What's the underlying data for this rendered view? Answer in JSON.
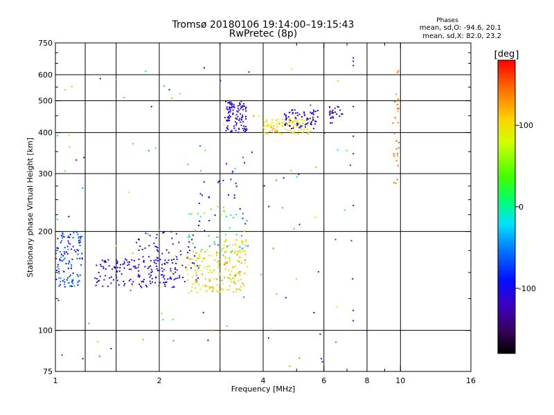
{
  "chart_data": {
    "type": "scatter",
    "title": "Tromsø 20180106 19:14:00–19:15:43",
    "subtitle": "RwPretec (8p)",
    "stats_header": "Phases",
    "stats_lines": [
      "mean, sd,O: -94.6, 20.1",
      "mean, sd,X: 82.0, 23.2"
    ],
    "xlabel": "Frequency [MHz]",
    "ylabel": "Stationary phase Virtual Height [km]",
    "x_scale": "log",
    "y_scale": "log",
    "xlim": [
      1,
      16
    ],
    "ylim": [
      75,
      750
    ],
    "x_ticks": [
      1,
      2,
      4,
      6,
      8,
      10,
      16
    ],
    "x_tick_labels": [
      "1",
      "2",
      "4",
      "6",
      "8",
      "10",
      "16"
    ],
    "x_minor_ticks": [
      3,
      5,
      7,
      9
    ],
    "y_ticks": [
      75,
      100,
      200,
      300,
      400,
      500,
      600,
      750
    ],
    "y_tick_labels": [
      "75",
      "100",
      "200",
      "300",
      "400",
      "500",
      "600",
      "750"
    ],
    "y_minor_ticks": [
      125,
      150,
      175,
      225,
      250,
      275,
      350,
      450,
      550,
      650,
      700
    ],
    "grid": true,
    "grid_x": [
      1.22,
      1.5,
      2,
      3,
      4,
      6,
      8,
      10
    ],
    "grid_y": [
      100,
      200,
      300,
      400,
      500,
      600
    ],
    "colorbar": {
      "label": "deg",
      "range": [
        -180,
        180
      ],
      "ticks": [
        100,
        0,
        -100
      ],
      "tick_labels": [
        "100",
        "0",
        "-100"
      ]
    },
    "seed_note": "",
    "clusters": [
      {
        "name": "",
        "xr": [
          1.0,
          1.2
        ],
        "yr": [
          135,
          200
        ],
        "pr": [
          -110,
          -40
        ],
        "n": 120
      },
      {
        "name": "",
        "xr": [
          1.3,
          2.3
        ],
        "yr": [
          135,
          165
        ],
        "pr": [
          -130,
          -90
        ],
        "n": 150
      },
      {
        "name": "",
        "xr": [
          1.7,
          2.6
        ],
        "yr": [
          140,
          200
        ],
        "pr": [
          -130,
          -95
        ],
        "n": 70
      },
      {
        "name": "",
        "xr": [
          2.4,
          3.6
        ],
        "yr": [
          130,
          175
        ],
        "pr": [
          60,
          140
        ],
        "n": 170
      },
      {
        "name": "",
        "xr": [
          2.4,
          3.6
        ],
        "yr": [
          160,
          240
        ],
        "pr": [
          -60,
          80
        ],
        "n": 45
      },
      {
        "name": "",
        "xr": [
          3.0,
          3.6
        ],
        "yr": [
          170,
          190
        ],
        "pr": [
          60,
          110
        ],
        "n": 30
      },
      {
        "name": "",
        "xr": [
          2.6,
          3.6
        ],
        "yr": [
          200,
          330
        ],
        "pr": [
          -110,
          -80
        ],
        "n": 25
      },
      {
        "name": "",
        "xr": [
          3.1,
          3.6
        ],
        "yr": [
          400,
          500
        ],
        "pr": [
          -125,
          -100
        ],
        "n": 110
      },
      {
        "name": "",
        "xr": [
          4.0,
          5.5
        ],
        "yr": [
          395,
          440
        ],
        "pr": [
          80,
          120
        ],
        "n": 110
      },
      {
        "name": "",
        "xr": [
          4.6,
          5.8
        ],
        "yr": [
          410,
          470
        ],
        "pr": [
          -125,
          -95
        ],
        "n": 70
      },
      {
        "name": "",
        "xr": [
          6.2,
          6.8
        ],
        "yr": [
          420,
          480
        ],
        "pr": [
          -140,
          -100
        ],
        "n": 25
      },
      {
        "name": "",
        "xr": [
          9.5,
          9.9
        ],
        "yr": [
          280,
          620
        ],
        "pr": [
          130,
          160
        ],
        "n": 28
      },
      {
        "name": "",
        "xr": [
          1.0,
          7.5
        ],
        "yr": [
          75,
          650
        ],
        "pr": [
          -140,
          160
        ],
        "n": 110
      }
    ],
    "points": [
      {
        "x": 7.3,
        "y": 660,
        "p": -110
      },
      {
        "x": 7.3,
        "y": 675,
        "p": -110
      },
      {
        "x": 7.3,
        "y": 640,
        "p": -110
      },
      {
        "x": 7.3,
        "y": 115,
        "p": -110
      },
      {
        "x": 7.3,
        "y": 107,
        "p": -110
      },
      {
        "x": 7.3,
        "y": 240,
        "p": -110
      },
      {
        "x": 7.3,
        "y": 480,
        "p": -110
      },
      {
        "x": 7.3,
        "y": 390,
        "p": -110
      },
      {
        "x": 7.3,
        "y": 345,
        "p": -110
      },
      {
        "x": 5.9,
        "y": 82,
        "p": -110
      },
      {
        "x": 2.7,
        "y": 630,
        "p": -110
      },
      {
        "x": 1.9,
        "y": 480,
        "p": -110
      },
      {
        "x": 1.15,
        "y": 330,
        "p": -110
      },
      {
        "x": 1.2,
        "y": 82,
        "p": -110
      },
      {
        "x": 1.45,
        "y": 88,
        "p": -110
      },
      {
        "x": 5.1,
        "y": 210,
        "p": -110
      },
      {
        "x": 1.3,
        "y": 600,
        "p": 140
      },
      {
        "x": 1.5,
        "y": 580,
        "p": 140
      },
      {
        "x": 9.8,
        "y": 610,
        "p": 150
      },
      {
        "x": 2.2,
        "y": 93,
        "p": 150
      },
      {
        "x": 3.0,
        "y": 97,
        "p": 140
      },
      {
        "x": 6.5,
        "y": 92,
        "p": 150
      },
      {
        "x": 1.25,
        "y": 105,
        "p": 140
      }
    ]
  }
}
